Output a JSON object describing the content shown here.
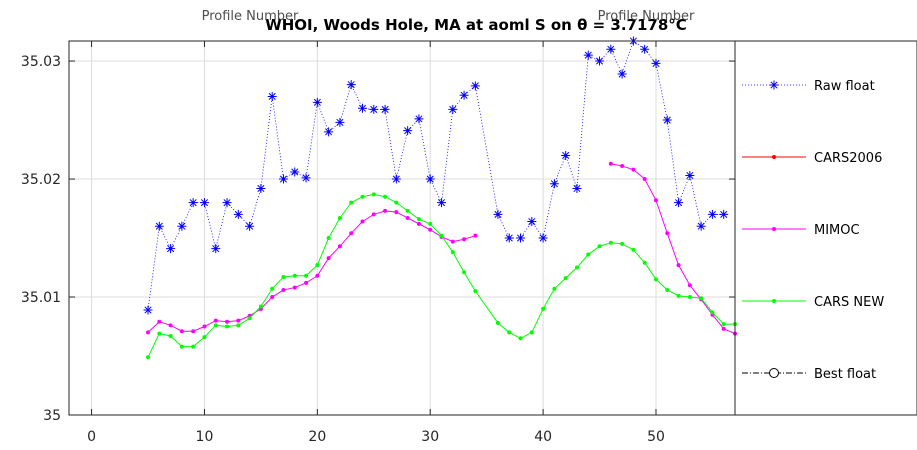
{
  "chart_data": {
    "type": "line",
    "title": "WHOI, Woods Hole, MA at aoml S on θ = 3.7178°C",
    "secondary_labels": [
      "Profile Number",
      "Profile Number"
    ],
    "xlabel": "",
    "ylabel": "",
    "xlim": [
      -2,
      57
    ],
    "ylim": [
      35,
      35.0317
    ],
    "xticks": [
      0,
      10,
      20,
      30,
      40,
      50
    ],
    "yticks": [
      35,
      35.01,
      35.02,
      35.03
    ],
    "ytick_labels": [
      "35",
      "35.01",
      "35.02",
      "35.03"
    ],
    "grid": true,
    "legend_position": "right",
    "series": [
      {
        "name": "Raw float",
        "color": "#0000ff",
        "style": "dotted-star",
        "x": [
          5,
          6,
          7,
          8,
          9,
          10,
          11,
          12,
          13,
          14,
          15,
          16,
          17,
          18,
          19,
          20,
          21,
          22,
          23,
          24,
          25,
          26,
          27,
          28,
          29,
          30,
          31,
          32,
          33,
          34,
          36,
          37,
          38,
          39,
          40,
          41,
          42,
          43,
          44,
          45,
          46,
          47,
          48,
          49,
          50,
          51,
          52,
          53,
          54,
          55,
          56
        ],
        "y": [
          35.0089,
          35.016,
          35.0141,
          35.016,
          35.018,
          35.018,
          35.0141,
          35.018,
          35.017,
          35.016,
          35.0192,
          35.027,
          35.02,
          35.0206,
          35.0201,
          35.0265,
          35.024,
          35.0248,
          35.028,
          35.026,
          35.0259,
          35.0259,
          35.02,
          35.0241,
          35.0251,
          35.02,
          35.018,
          35.0259,
          35.0271,
          35.0279,
          35.017,
          35.015,
          35.015,
          35.0164,
          35.015,
          35.0196,
          35.022,
          35.0192,
          35.0305,
          35.03,
          35.031,
          35.0289,
          35.0317,
          35.031,
          35.0298,
          35.025,
          35.018,
          35.0203,
          35.016,
          35.017,
          35.017
        ]
      },
      {
        "name": "CARS2006",
        "color": "#ff0000",
        "style": "dot-line",
        "x": [],
        "y": []
      },
      {
        "name": "MIMOC",
        "color": "#ff00ff",
        "style": "dot-line",
        "segments": [
          {
            "x": [
              5,
              6,
              7,
              8,
              9,
              10,
              11,
              12,
              13,
              14,
              15,
              16,
              17,
              18,
              19,
              20,
              21,
              22,
              23,
              24,
              25,
              26,
              27,
              28,
              29,
              30,
              31,
              32,
              33,
              34
            ],
            "y": [
              35.007,
              35.0079,
              35.0076,
              35.0071,
              35.0071,
              35.0075,
              35.008,
              35.0079,
              35.008,
              35.0084,
              35.009,
              35.01,
              35.0106,
              35.0108,
              35.0112,
              35.0118,
              35.0133,
              35.0143,
              35.0154,
              35.0164,
              35.017,
              35.0173,
              35.0172,
              35.0167,
              35.0162,
              35.0157,
              35.0151,
              35.0147,
              35.0149,
              35.0152
            ]
          },
          {
            "x": [
              46,
              47,
              48,
              49,
              50,
              51,
              52,
              53,
              54,
              55,
              56,
              57
            ],
            "y": [
              35.0213,
              35.0211,
              35.0208,
              35.02,
              35.0182,
              35.0154,
              35.0127,
              35.011,
              35.0098,
              35.0085,
              35.0073,
              35.0069
            ]
          }
        ]
      },
      {
        "name": "CARS NEW",
        "color": "#00ff00",
        "style": "dot-line",
        "x": [
          5,
          6,
          7,
          8,
          9,
          10,
          11,
          12,
          13,
          14,
          15,
          16,
          17,
          18,
          19,
          20,
          21,
          22,
          23,
          24,
          25,
          26,
          27,
          28,
          29,
          30,
          31,
          32,
          33,
          34,
          36,
          37,
          38,
          39,
          40,
          41,
          42,
          43,
          44,
          45,
          46,
          47,
          48,
          49,
          50,
          51,
          52,
          53,
          54,
          55,
          56,
          57
        ],
        "y": [
          35.0049,
          35.0069,
          35.0067,
          35.0058,
          35.0058,
          35.0066,
          35.0076,
          35.0075,
          35.0076,
          35.0082,
          35.0092,
          35.0107,
          35.0117,
          35.0118,
          35.0118,
          35.0127,
          35.015,
          35.0167,
          35.018,
          35.0185,
          35.0187,
          35.0185,
          35.018,
          35.0173,
          35.0166,
          35.0162,
          35.0152,
          35.0138,
          35.0121,
          35.0105,
          35.0078,
          35.007,
          35.0065,
          35.007,
          35.009,
          35.0107,
          35.0116,
          35.0125,
          35.0136,
          35.0143,
          35.0146,
          35.0145,
          35.014,
          35.0129,
          35.0115,
          35.0106,
          35.0101,
          35.01,
          35.0099,
          35.0087,
          35.0077,
          35.0077
        ]
      },
      {
        "name": "Best float",
        "color": "#000000",
        "style": "dashdot-circle",
        "x": [],
        "y": []
      }
    ]
  }
}
